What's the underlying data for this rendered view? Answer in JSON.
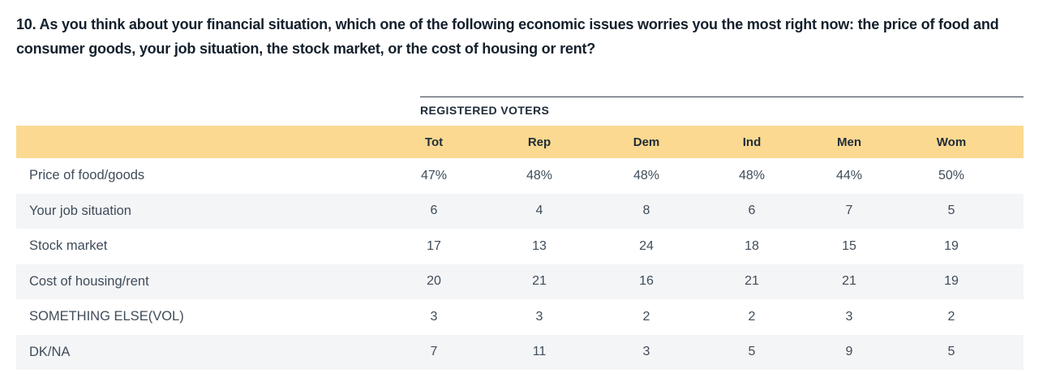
{
  "page": {
    "question": "10. As you think about your financial situation, which one of the following economic issues worries you the most right now: the price of food and consumer goods, your job situation, the stock market, or the cost of housing or rent?"
  },
  "table": {
    "group_header": "REGISTERED VOTERS",
    "columns": [
      "Tot",
      "Rep",
      "Dem",
      "Ind",
      "Men",
      "Wom"
    ],
    "rows": [
      {
        "label": "Price of food/goods",
        "values": [
          "47%",
          "48%",
          "48%",
          "48%",
          "44%",
          "50%"
        ]
      },
      {
        "label": "Your job situation",
        "values": [
          "6",
          "4",
          "8",
          "6",
          "7",
          "5"
        ]
      },
      {
        "label": "Stock market",
        "values": [
          "17",
          "13",
          "24",
          "18",
          "15",
          "19"
        ]
      },
      {
        "label": "Cost of housing/rent",
        "values": [
          "20",
          "21",
          "16",
          "21",
          "21",
          "19"
        ]
      },
      {
        "label": "SOMETHING ELSE(VOL)",
        "values": [
          "3",
          "3",
          "2",
          "2",
          "3",
          "2"
        ]
      },
      {
        "label": "DK/NA",
        "values": [
          "7",
          "11",
          "3",
          "5",
          "9",
          "5"
        ]
      }
    ]
  },
  "colors": {
    "header_band": "#fbd990",
    "row_stripe": "#f4f5f7",
    "title_text": "#14202c",
    "header_text": "#1f2c39",
    "body_text": "#3f4c59",
    "rule": "#39434d"
  },
  "chart_data": {
    "type": "table",
    "title": "10. As you think about your financial situation, which one of the following economic issues worries you the most right now: the price of food and consumer goods, your job situation, the stock market, or the cost of housing or rent?",
    "group_header": "REGISTERED VOTERS",
    "categories": [
      "Price of food/goods",
      "Your job situation",
      "Stock market",
      "Cost of housing/rent",
      "SOMETHING ELSE(VOL)",
      "DK/NA"
    ],
    "series": [
      {
        "name": "Tot",
        "values": [
          47,
          6,
          17,
          20,
          3,
          7
        ]
      },
      {
        "name": "Rep",
        "values": [
          48,
          4,
          13,
          21,
          3,
          11
        ]
      },
      {
        "name": "Dem",
        "values": [
          48,
          8,
          24,
          16,
          2,
          3
        ]
      },
      {
        "name": "Ind",
        "values": [
          48,
          6,
          18,
          21,
          2,
          5
        ]
      },
      {
        "name": "Men",
        "values": [
          44,
          7,
          15,
          21,
          3,
          9
        ]
      },
      {
        "name": "Wom",
        "values": [
          50,
          5,
          19,
          19,
          2,
          5
        ]
      }
    ],
    "unit": "percent of registered voters"
  }
}
